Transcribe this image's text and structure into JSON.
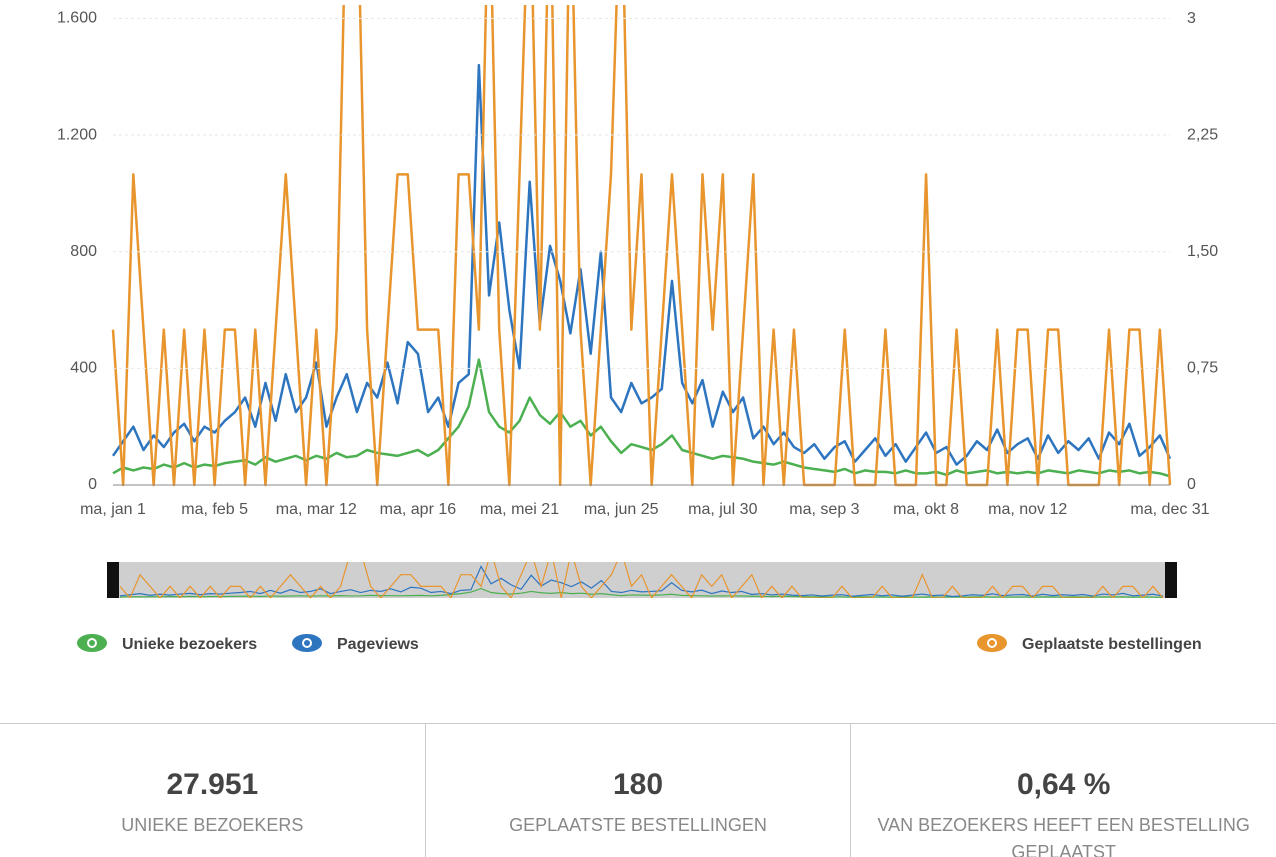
{
  "chart_data": {
    "type": "line",
    "categories": [
      "ma, jan 1",
      null,
      null,
      null,
      null,
      null,
      null,
      null,
      null,
      null,
      "ma, feb 5",
      null,
      null,
      null,
      null,
      null,
      null,
      null,
      null,
      null,
      "ma, mar 12",
      null,
      null,
      null,
      null,
      null,
      null,
      null,
      null,
      null,
      "ma, apr 16",
      null,
      null,
      null,
      null,
      null,
      null,
      null,
      null,
      null,
      "ma, mei 21",
      null,
      null,
      null,
      null,
      null,
      null,
      null,
      null,
      null,
      "ma, jun 25",
      null,
      null,
      null,
      null,
      null,
      null,
      null,
      null,
      null,
      "ma, jul 30",
      null,
      null,
      null,
      null,
      null,
      null,
      null,
      null,
      null,
      "ma, sep 3",
      null,
      null,
      null,
      null,
      null,
      null,
      null,
      null,
      null,
      "ma, okt 8",
      null,
      null,
      null,
      null,
      null,
      null,
      null,
      null,
      null,
      "ma, nov 12",
      null,
      null,
      null,
      null,
      null,
      null,
      null,
      null,
      null,
      null,
      null,
      null,
      null,
      "ma, dec 31"
    ],
    "series": [
      {
        "name": "Unieke bezoekers",
        "color": "#4cb050",
        "values": [
          40,
          60,
          50,
          60,
          55,
          70,
          60,
          75,
          60,
          70,
          65,
          75,
          80,
          85,
          70,
          95,
          80,
          90,
          100,
          85,
          100,
          90,
          110,
          95,
          100,
          120,
          110,
          105,
          100,
          110,
          120,
          100,
          120,
          160,
          200,
          270,
          430,
          250,
          200,
          180,
          220,
          300,
          240,
          210,
          250,
          200,
          220,
          170,
          200,
          150,
          110,
          140,
          130,
          120,
          140,
          170,
          120,
          110,
          100,
          90,
          100,
          95,
          90,
          80,
          75,
          70,
          80,
          70,
          60,
          55,
          50,
          45,
          55,
          40,
          50,
          45,
          45,
          40,
          50,
          40,
          40,
          45,
          35,
          50,
          40,
          45,
          50,
          40,
          45,
          40,
          45,
          40,
          50,
          45,
          40,
          50,
          45,
          40,
          50,
          45,
          50,
          40,
          45,
          40,
          30
        ]
      },
      {
        "name": "Pageviews",
        "color": "#2e75c0",
        "values": [
          100,
          150,
          200,
          120,
          170,
          130,
          180,
          210,
          150,
          200,
          180,
          220,
          250,
          300,
          200,
          350,
          220,
          380,
          250,
          300,
          420,
          200,
          300,
          380,
          250,
          350,
          300,
          420,
          280,
          490,
          450,
          250,
          300,
          200,
          350,
          380,
          1440,
          650,
          900,
          600,
          400,
          1040,
          550,
          820,
          700,
          520,
          740,
          450,
          800,
          300,
          250,
          350,
          280,
          300,
          330,
          700,
          350,
          280,
          360,
          200,
          320,
          250,
          300,
          160,
          200,
          140,
          180,
          130,
          110,
          140,
          90,
          130,
          150,
          80,
          120,
          160,
          100,
          140,
          80,
          130,
          180,
          110,
          130,
          70,
          100,
          150,
          120,
          190,
          110,
          140,
          160,
          90,
          170,
          110,
          150,
          120,
          160,
          90,
          180,
          140,
          210,
          100,
          130,
          170,
          90
        ]
      },
      {
        "name": "Geplaatste bestellingen",
        "color": "#e8952e",
        "axis": "y2",
        "values": [
          1,
          0,
          2,
          1,
          0,
          1,
          0,
          1,
          0,
          1,
          0,
          1,
          1,
          0,
          1,
          0,
          1,
          2,
          1,
          0,
          1,
          0,
          1,
          4,
          4,
          1,
          0,
          1,
          2,
          2,
          1,
          1,
          1,
          0,
          2,
          2,
          1,
          4,
          1,
          0,
          2,
          4,
          1,
          4,
          0,
          4,
          1,
          0,
          1,
          2,
          4,
          1,
          2,
          0,
          1,
          2,
          1,
          0,
          2,
          1,
          2,
          0,
          1,
          2,
          0,
          1,
          0,
          1,
          0,
          0,
          0,
          0,
          1,
          0,
          0,
          0,
          1,
          0,
          0,
          0,
          2,
          0,
          0,
          1,
          0,
          0,
          0,
          1,
          0,
          1,
          1,
          0,
          1,
          1,
          0,
          0,
          0,
          0,
          1,
          0,
          1,
          1,
          0,
          1,
          0
        ]
      }
    ],
    "ylim": [
      0,
      1646
    ],
    "yticks": [
      0,
      400,
      800,
      {
        "value": 1200,
        "label": "1.200"
      },
      {
        "value": 1600,
        "label": "1.600"
      }
    ],
    "y2lim": [
      0,
      3.09
    ],
    "y2ticks": [
      0,
      {
        "value": 0.75,
        "label": "0,75"
      },
      {
        "value": 1.5,
        "label": "1,50"
      },
      {
        "value": 2.25,
        "label": "2,25"
      },
      3
    ],
    "grid": true
  },
  "stats": [
    {
      "value": "27.951",
      "label": "UNIEKE BEZOEKERS"
    },
    {
      "value": "180",
      "label": "GEPLAATSTE BESTELLINGEN"
    },
    {
      "value": "0,64 %",
      "label": "VAN BEZOEKERS HEEFT EEN BESTELLING GEPLAATST"
    }
  ]
}
